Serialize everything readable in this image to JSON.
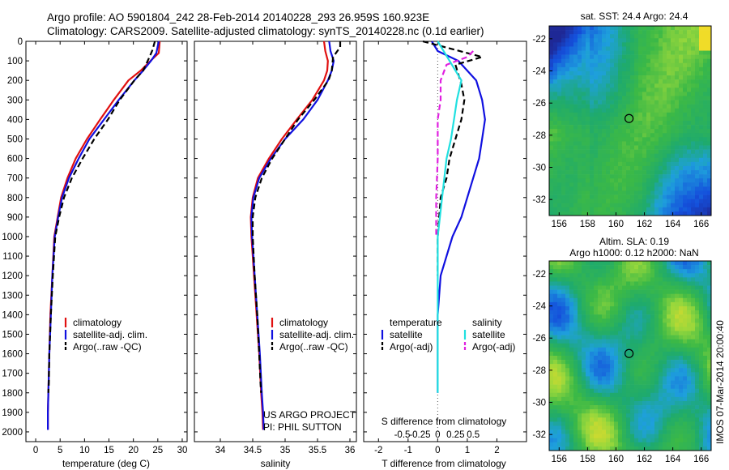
{
  "header": {
    "line1": "Argo profile: AO 5901804_242 28-Feb-2014 20140228_293 26.959S 160.923E",
    "line2": "Climatology: CARS2009. Satellite-adjusted climatology: synTS_20140228.nc (0.1d earlier)"
  },
  "colors": {
    "climatology": "#e01010",
    "satellite": "#1010e0",
    "argo": "#000000",
    "salinity_satellite": "#20e0e0",
    "salinity_argo": "#e020e0"
  },
  "credits": {
    "line1": "US ARGO PROJECT",
    "line2": "PI: PHIL SUTTON"
  },
  "stamp": "IMOS 07-Mar-2014 20:00:40",
  "chart_data": [
    {
      "type": "line",
      "id": "temperature",
      "xlabel": "temperature (deg C)",
      "ylabel": "",
      "xlim": [
        -2,
        31
      ],
      "ylim": [
        2050,
        0
      ],
      "xticks": [
        "0",
        "5",
        "10",
        "15",
        "20",
        "25",
        "30"
      ],
      "xtick_values": [
        0,
        5,
        10,
        15,
        20,
        25,
        30
      ],
      "yticks": [
        "0",
        "100",
        "200",
        "300",
        "400",
        "500",
        "600",
        "700",
        "800",
        "900",
        "1000",
        "1100",
        "1200",
        "1300",
        "1400",
        "1500",
        "1600",
        "1700",
        "1800",
        "1900",
        "2000"
      ],
      "ytick_values": [
        0,
        100,
        200,
        300,
        400,
        500,
        600,
        700,
        800,
        900,
        1000,
        1100,
        1200,
        1300,
        1400,
        1500,
        1600,
        1700,
        1800,
        1900,
        2000
      ],
      "legend": [
        "climatology",
        "satellite-adj. clim.",
        "Argo(..raw -QC)"
      ],
      "legend_position": "lower-right",
      "series": [
        {
          "name": "climatology",
          "style": "solid",
          "color": "#e01010",
          "x": [
            25.4,
            25.2,
            23.5,
            21.5,
            19.0,
            16.0,
            13.2,
            10.5,
            8.2,
            6.5,
            5.2,
            4.5,
            3.8,
            3.4,
            3.0,
            2.8,
            2.6,
            2.5,
            2.5
          ],
          "y": [
            0,
            60,
            100,
            150,
            200,
            300,
            400,
            500,
            600,
            700,
            800,
            900,
            1000,
            1200,
            1400,
            1600,
            1800,
            1900,
            1990
          ]
        },
        {
          "name": "satellite-adj. clim.",
          "style": "solid",
          "color": "#1010e0",
          "x": [
            25.2,
            24.7,
            23.6,
            22.0,
            20.2,
            17.0,
            14.0,
            11.0,
            8.8,
            6.8,
            5.4,
            4.6,
            3.9,
            3.4,
            3.1,
            2.8,
            2.6,
            2.5,
            2.5
          ],
          "y": [
            0,
            60,
            100,
            150,
            200,
            300,
            400,
            500,
            600,
            700,
            800,
            900,
            1000,
            1200,
            1400,
            1600,
            1800,
            1900,
            1990
          ]
        },
        {
          "name": "Argo(..raw -QC)",
          "style": "dashed",
          "color": "#000000",
          "x": [
            24.4,
            23.9,
            23.3,
            22.0,
            20.2,
            17.2,
            14.8,
            12.0,
            9.6,
            7.4,
            5.8,
            4.8,
            4.0,
            3.5,
            3.1,
            2.8,
            2.7,
            2.6
          ],
          "y": [
            0,
            45,
            80,
            150,
            200,
            300,
            400,
            500,
            600,
            700,
            800,
            900,
            1000,
            1200,
            1400,
            1600,
            1750,
            1800
          ]
        }
      ]
    },
    {
      "type": "line",
      "id": "salinity",
      "xlabel": "salinity",
      "ylabel": "",
      "xlim": [
        33.6,
        36.1
      ],
      "ylim": [
        2050,
        0
      ],
      "xticks": [
        "34",
        "34.5",
        "35",
        "35.5",
        "36"
      ],
      "xtick_values": [
        34,
        34.5,
        35,
        35.5,
        36
      ],
      "legend": [
        "climatology",
        "satellite-adj. clim.",
        "Argo(..raw -QC)"
      ],
      "legend_position": "lower-right",
      "series": [
        {
          "name": "climatology",
          "style": "solid",
          "color": "#e01010",
          "x": [
            35.6,
            35.62,
            35.66,
            35.65,
            35.6,
            35.42,
            35.18,
            34.95,
            34.75,
            34.58,
            34.5,
            34.47,
            34.48,
            34.52,
            34.56,
            34.6,
            34.63,
            34.65,
            34.66
          ],
          "y": [
            0,
            50,
            100,
            150,
            200,
            300,
            400,
            500,
            600,
            700,
            800,
            900,
            1000,
            1200,
            1400,
            1600,
            1800,
            1900,
            1990
          ]
        },
        {
          "name": "satellite-adj. clim.",
          "style": "solid",
          "color": "#1010e0",
          "x": [
            35.68,
            35.7,
            35.75,
            35.72,
            35.66,
            35.5,
            35.28,
            35.0,
            34.78,
            34.6,
            34.51,
            34.48,
            34.49,
            34.53,
            34.57,
            34.61,
            34.64,
            34.66,
            34.67
          ],
          "y": [
            0,
            50,
            100,
            150,
            200,
            300,
            400,
            500,
            600,
            700,
            800,
            900,
            1000,
            1200,
            1400,
            1600,
            1800,
            1900,
            1990
          ]
        },
        {
          "name": "Argo(..raw -QC)",
          "style": "dashed",
          "color": "#000000",
          "x": [
            35.85,
            35.85,
            35.74,
            35.72,
            35.67,
            35.45,
            35.2,
            35.0,
            34.8,
            34.64,
            34.54,
            34.5,
            34.5,
            34.53,
            34.57,
            34.6,
            34.62,
            34.63
          ],
          "y": [
            0,
            30,
            80,
            150,
            200,
            300,
            400,
            500,
            600,
            700,
            800,
            900,
            1000,
            1200,
            1400,
            1600,
            1750,
            1800
          ]
        }
      ]
    },
    {
      "type": "line",
      "id": "difference",
      "xlabel": "T difference from climatology",
      "xlabel_top": "S difference from climatology",
      "ylabel": "",
      "xlim": [
        -2.5,
        3.0
      ],
      "ylim": [
        2050,
        0
      ],
      "xticks": [
        "-2",
        "-1",
        "0",
        "1",
        "2"
      ],
      "xtick_values": [
        -2,
        -1,
        0,
        1,
        2
      ],
      "xticks_secondary": [
        "-0.5",
        "-0.25",
        "0",
        "0.25",
        "0.5"
      ],
      "legend": [
        "temperature",
        "satellite",
        "Argo(-adj)",
        "salinity",
        "satellite",
        "Argo(-adj)"
      ],
      "legend_position": "lower-center",
      "series": [
        {
          "name": "temperature satellite",
          "style": "solid",
          "color": "#1010e0",
          "x": [
            -0.2,
            0.0,
            0.7,
            1.3,
            1.5,
            1.6,
            1.5,
            1.4,
            1.2,
            1.0,
            0.8,
            0.5,
            0.3,
            0.1,
            0.0,
            0.0,
            0.0
          ],
          "y": [
            0,
            50,
            100,
            200,
            300,
            400,
            500,
            600,
            700,
            800,
            900,
            1000,
            1100,
            1200,
            1400,
            1600,
            1800
          ]
        },
        {
          "name": "temperature Argo(-adj)",
          "style": "dashed",
          "color": "#000000",
          "x": [
            -0.5,
            1.5,
            0.6,
            0.8,
            0.9,
            0.8,
            0.6,
            0.4,
            0.3,
            0.1,
            0.0,
            0.0
          ],
          "y": [
            0,
            80,
            120,
            220,
            300,
            400,
            500,
            600,
            700,
            800,
            1000,
            1200
          ]
        },
        {
          "name": "salinity satellite",
          "style": "solid",
          "color": "#20e0e0",
          "x": [
            0.0,
            0.4,
            0.8,
            0.65,
            0.55,
            0.45,
            0.3,
            0.15,
            0.0,
            0.0,
            0.0
          ],
          "y": [
            0,
            100,
            200,
            300,
            400,
            500,
            600,
            800,
            1000,
            1400,
            1800
          ]
        },
        {
          "name": "salinity Argo(-adj)",
          "style": "dashed",
          "color": "#e020e0",
          "x": [
            1.2,
            1.0,
            0.3,
            0.1,
            0.1,
            0.0,
            0.0,
            0.0,
            -0.05,
            -0.05
          ],
          "y": [
            50,
            80,
            120,
            200,
            300,
            400,
            500,
            600,
            800,
            1000
          ]
        }
      ]
    },
    {
      "type": "heatmap",
      "id": "sst-map",
      "title": "sat. SST: 24.4  Argo: 24.4",
      "xlim": [
        155.3,
        166.7
      ],
      "ylim": [
        -33.0,
        -21.2
      ],
      "xticks": [
        "156",
        "158",
        "160",
        "162",
        "164",
        "166"
      ],
      "xtick_values": [
        156,
        158,
        160,
        162,
        164,
        166
      ],
      "yticks": [
        "-22",
        "-24",
        "-26",
        "-28",
        "-30",
        "-32"
      ],
      "ytick_values": [
        -22,
        -24,
        -26,
        -28,
        -30,
        -32
      ],
      "marker": {
        "lon": 160.92,
        "lat": -26.96
      }
    },
    {
      "type": "heatmap",
      "id": "sla-map",
      "title": "Altim. SLA: 0.19",
      "subtitle": "Argo h1000: 0.12 h2000: NaN",
      "xlim": [
        155.3,
        166.7
      ],
      "ylim": [
        -33.0,
        -21.2
      ],
      "xticks": [
        "156",
        "158",
        "160",
        "162",
        "164",
        "166"
      ],
      "xtick_values": [
        156,
        158,
        160,
        162,
        164,
        166
      ],
      "yticks": [
        "-22",
        "-24",
        "-26",
        "-28",
        "-30",
        "-32"
      ],
      "ytick_values": [
        -22,
        -24,
        -26,
        -28,
        -30,
        -32
      ],
      "marker": {
        "lon": 160.92,
        "lat": -26.96
      }
    }
  ]
}
